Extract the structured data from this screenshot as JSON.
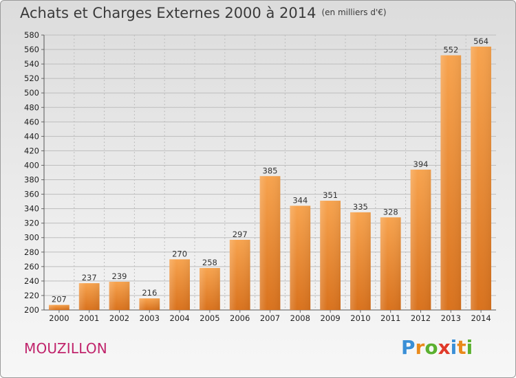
{
  "header": {
    "title": "Achats et Charges Externes 2000 à 2014",
    "unit": "(en milliers d'€)"
  },
  "footer": {
    "commune": "MOUZILLON",
    "logo": [
      "P",
      "r",
      "o",
      "x",
      "i",
      "t",
      "i"
    ],
    "logo_colors": [
      "#3a8fd6",
      "#e98a1c",
      "#5bb030",
      "#e03a2a",
      "#3a8fd6",
      "#e98a1c",
      "#5bb030"
    ]
  },
  "chart_data": {
    "type": "bar",
    "categories": [
      "2000",
      "2001",
      "2002",
      "2003",
      "2004",
      "2005",
      "2006",
      "2007",
      "2008",
      "2009",
      "2010",
      "2011",
      "2012",
      "2013",
      "2014"
    ],
    "values": [
      207,
      237,
      239,
      216,
      270,
      258,
      297,
      385,
      344,
      351,
      335,
      328,
      394,
      552,
      564
    ],
    "ylim": [
      200,
      580
    ],
    "yticks": [
      200,
      220,
      240,
      260,
      280,
      300,
      320,
      340,
      360,
      380,
      400,
      420,
      440,
      460,
      480,
      500,
      520,
      540,
      560,
      580
    ],
    "grid": true,
    "bar_color_top": "#f7a34e",
    "bar_color_bottom": "#d9721d"
  }
}
